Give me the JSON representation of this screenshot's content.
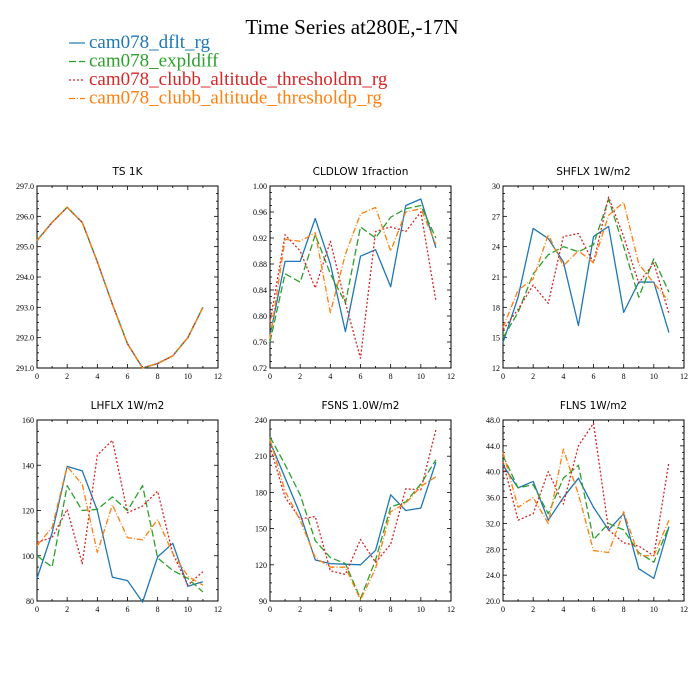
{
  "title": "Time Series at280E,-17N",
  "legend": [
    {
      "label": "cam078_dflt_rg",
      "color": "#1f77b4",
      "dash": "solid"
    },
    {
      "label": "cam078_expldiff",
      "color": "#2ca02c",
      "dash": "longdash"
    },
    {
      "label": "cam078_clubb_altitude_thresholdm_rg",
      "color": "#d62728",
      "dash": "dot"
    },
    {
      "label": "cam078_clubb_altitude_thresholdp_rg",
      "color": "#ff7f0e",
      "dash": "dashdot"
    }
  ],
  "chart_data": [
    {
      "type": "line",
      "title": "TS   1K",
      "x": [
        0,
        1,
        2,
        3,
        4,
        5,
        6,
        7,
        8,
        9,
        10,
        11
      ],
      "xlim": [
        0,
        12
      ],
      "xticks": [
        "0",
        "2",
        "4",
        "6",
        "8",
        "10",
        "12"
      ],
      "ylim": [
        291.0,
        297.0
      ],
      "yticks": [
        "291.0",
        "292.0",
        "293.0",
        "294.0",
        "295.0",
        "296.0",
        "297.0"
      ],
      "series": [
        {
          "name": "cam078_dflt_rg",
          "values": [
            295.2,
            295.8,
            296.3,
            295.8,
            294.5,
            293.1,
            291.8,
            291.0,
            291.15,
            291.4,
            292.0,
            293.0
          ]
        },
        {
          "name": "cam078_expldiff",
          "values": [
            295.2,
            295.8,
            296.3,
            295.8,
            294.5,
            293.1,
            291.8,
            291.0,
            291.15,
            291.4,
            292.0,
            293.0
          ]
        },
        {
          "name": "cam078_clubb_altitude_thresholdm_rg",
          "values": [
            295.2,
            295.8,
            296.3,
            295.8,
            294.5,
            293.1,
            291.8,
            291.0,
            291.15,
            291.4,
            292.0,
            293.0
          ]
        },
        {
          "name": "cam078_clubb_altitude_thresholdp_rg",
          "values": [
            295.2,
            295.8,
            296.3,
            295.8,
            294.5,
            293.1,
            291.8,
            291.0,
            291.15,
            291.4,
            292.0,
            293.0
          ]
        }
      ]
    },
    {
      "type": "line",
      "title": "CLDLOW   1fraction",
      "x": [
        0,
        1,
        2,
        3,
        4,
        5,
        6,
        7,
        8,
        9,
        10,
        11
      ],
      "xlim": [
        0,
        12
      ],
      "xticks": [
        "0",
        "2",
        "4",
        "6",
        "8",
        "10",
        "12"
      ],
      "ylim": [
        0.72,
        1.0
      ],
      "yticks": [
        "0.72",
        "0.76",
        "0.80",
        "0.84",
        "0.88",
        "0.92",
        "0.96",
        "1.00"
      ],
      "series": [
        {
          "name": "cam078_dflt_rg",
          "values": [
            0.77,
            0.884,
            0.884,
            0.95,
            0.88,
            0.776,
            0.892,
            0.902,
            0.845,
            0.97,
            0.98,
            0.905
          ]
        },
        {
          "name": "cam078_expldiff",
          "values": [
            0.76,
            0.865,
            0.852,
            0.925,
            0.865,
            0.82,
            0.937,
            0.92,
            0.952,
            0.965,
            0.97,
            0.92
          ]
        },
        {
          "name": "cam078_clubb_altitude_thresholdm_rg",
          "values": [
            0.79,
            0.925,
            0.9,
            0.843,
            0.915,
            0.82,
            0.735,
            0.93,
            0.937,
            0.93,
            0.96,
            0.823
          ]
        },
        {
          "name": "cam078_clubb_altitude_thresholdp_rg",
          "values": [
            0.765,
            0.918,
            0.915,
            0.928,
            0.805,
            0.895,
            0.957,
            0.967,
            0.9,
            0.96,
            0.965,
            0.91
          ]
        }
      ]
    },
    {
      "type": "line",
      "title": "SHFLX   1W/m2",
      "x": [
        0,
        1,
        2,
        3,
        4,
        5,
        6,
        7,
        8,
        9,
        10,
        11
      ],
      "xlim": [
        0,
        12
      ],
      "xticks": [
        "0",
        "2",
        "4",
        "6",
        "8",
        "10",
        "12"
      ],
      "ylim": [
        12,
        30
      ],
      "yticks": [
        "12",
        "15",
        "18",
        "21",
        "24",
        "27",
        "30"
      ],
      "series": [
        {
          "name": "cam078_dflt_rg",
          "values": [
            14.5,
            19.0,
            25.8,
            24.8,
            22.5,
            16.2,
            25.0,
            26.0,
            17.5,
            20.5,
            20.5,
            15.5
          ]
        },
        {
          "name": "cam078_expldiff",
          "values": [
            15.0,
            17.5,
            21.3,
            23.2,
            24.0,
            23.5,
            24.2,
            28.7,
            24.0,
            19.0,
            22.8,
            19.5
          ]
        },
        {
          "name": "cam078_clubb_altitude_thresholdm_rg",
          "values": [
            15.8,
            17.8,
            20.2,
            18.4,
            25.0,
            25.3,
            22.4,
            28.9,
            25.0,
            20.4,
            22.4,
            17.4
          ]
        },
        {
          "name": "cam078_clubb_altitude_thresholdp_rg",
          "values": [
            16.0,
            19.7,
            20.8,
            25.2,
            22.1,
            23.6,
            22.4,
            27.1,
            28.4,
            22.3,
            20.4,
            18.6
          ]
        }
      ]
    },
    {
      "type": "line",
      "title": "LHFLX   1W/m2",
      "x": [
        0,
        1,
        2,
        3,
        4,
        5,
        6,
        7,
        8,
        9,
        10,
        11
      ],
      "xlim": [
        0,
        12
      ],
      "xticks": [
        "0",
        "2",
        "4",
        "6",
        "8",
        "10",
        "12"
      ],
      "ylim": [
        80,
        160
      ],
      "yticks": [
        "80",
        "100",
        "120",
        "140",
        "160"
      ],
      "series": [
        {
          "name": "cam078_dflt_rg",
          "values": [
            90,
            110,
            139.5,
            137.5,
            120,
            90.5,
            89,
            79.5,
            99.5,
            105.5,
            86.5,
            88.5
          ]
        },
        {
          "name": "cam078_expldiff",
          "values": [
            100,
            95,
            131,
            120,
            120.5,
            126,
            120,
            131,
            99,
            93.5,
            90,
            84
          ]
        },
        {
          "name": "cam078_clubb_altitude_thresholdm_rg",
          "values": [
            106,
            108,
            120.5,
            96.5,
            144.5,
            151,
            119,
            122,
            128.5,
            101,
            87,
            93
          ]
        },
        {
          "name": "cam078_clubb_altitude_thresholdp_rg",
          "values": [
            104.5,
            112.5,
            139.5,
            131.5,
            101.5,
            122.5,
            108,
            107,
            116,
            101,
            91,
            87
          ]
        }
      ]
    },
    {
      "type": "line",
      "title": "FSNS   1.0W/m2",
      "x": [
        0,
        1,
        2,
        3,
        4,
        5,
        6,
        7,
        8,
        9,
        10,
        11
      ],
      "xlim": [
        0,
        12
      ],
      "xticks": [
        "0",
        "2",
        "4",
        "6",
        "8",
        "10",
        "12"
      ],
      "ylim": [
        90,
        240
      ],
      "yticks": [
        "90",
        "120",
        "150",
        "180",
        "210",
        "240"
      ],
      "series": [
        {
          "name": "cam078_dflt_rg",
          "values": [
            222,
            192,
            162,
            124,
            121,
            120.5,
            120,
            132,
            178,
            165,
            167,
            205
          ]
        },
        {
          "name": "cam078_expldiff",
          "values": [
            226,
            203,
            178,
            140,
            126,
            121,
            92,
            124,
            168,
            172,
            187,
            207
          ]
        },
        {
          "name": "cam078_clubb_altitude_thresholdm_rg",
          "values": [
            218,
            176,
            158,
            160,
            115,
            112,
            141,
            122,
            137,
            183,
            182,
            232
          ]
        },
        {
          "name": "cam078_clubb_altitude_thresholdp_rg",
          "values": [
            224,
            181,
            157,
            126,
            118,
            118,
            91,
            117,
            164,
            171,
            185,
            193
          ]
        }
      ]
    },
    {
      "type": "line",
      "title": "FLNS   1W/m2",
      "x": [
        0,
        1,
        2,
        3,
        4,
        5,
        6,
        7,
        8,
        9,
        10,
        11
      ],
      "xlim": [
        0,
        12
      ],
      "xticks": [
        "0",
        "2",
        "4",
        "6",
        "8",
        "10",
        "12"
      ],
      "ylim": [
        20.0,
        48.0
      ],
      "yticks": [
        "20.0",
        "24.0",
        "28.0",
        "32.0",
        "36.0",
        "40.0",
        "44.0",
        "48.0"
      ],
      "series": [
        {
          "name": "cam078_dflt_rg",
          "values": [
            41.0,
            37.5,
            38.5,
            32.5,
            36.0,
            39.0,
            34.5,
            31.0,
            33.5,
            25.0,
            23.5,
            31.5
          ]
        },
        {
          "name": "cam078_expldiff",
          "values": [
            42.5,
            37.5,
            38.0,
            33.5,
            39.0,
            41.0,
            29.5,
            32.0,
            31.0,
            27.5,
            26.0,
            31.5
          ]
        },
        {
          "name": "cam078_clubb_altitude_thresholdm_rg",
          "values": [
            41.5,
            32.5,
            33.5,
            40.0,
            35.0,
            44.0,
            47.5,
            31.0,
            29.0,
            28.5,
            27.0,
            41.5
          ]
        },
        {
          "name": "cam078_clubb_altitude_thresholdp_rg",
          "values": [
            43.0,
            34.5,
            36.0,
            32.0,
            43.5,
            36.5,
            27.8,
            27.5,
            33.8,
            27.0,
            27.0,
            32.5
          ]
        }
      ]
    }
  ]
}
